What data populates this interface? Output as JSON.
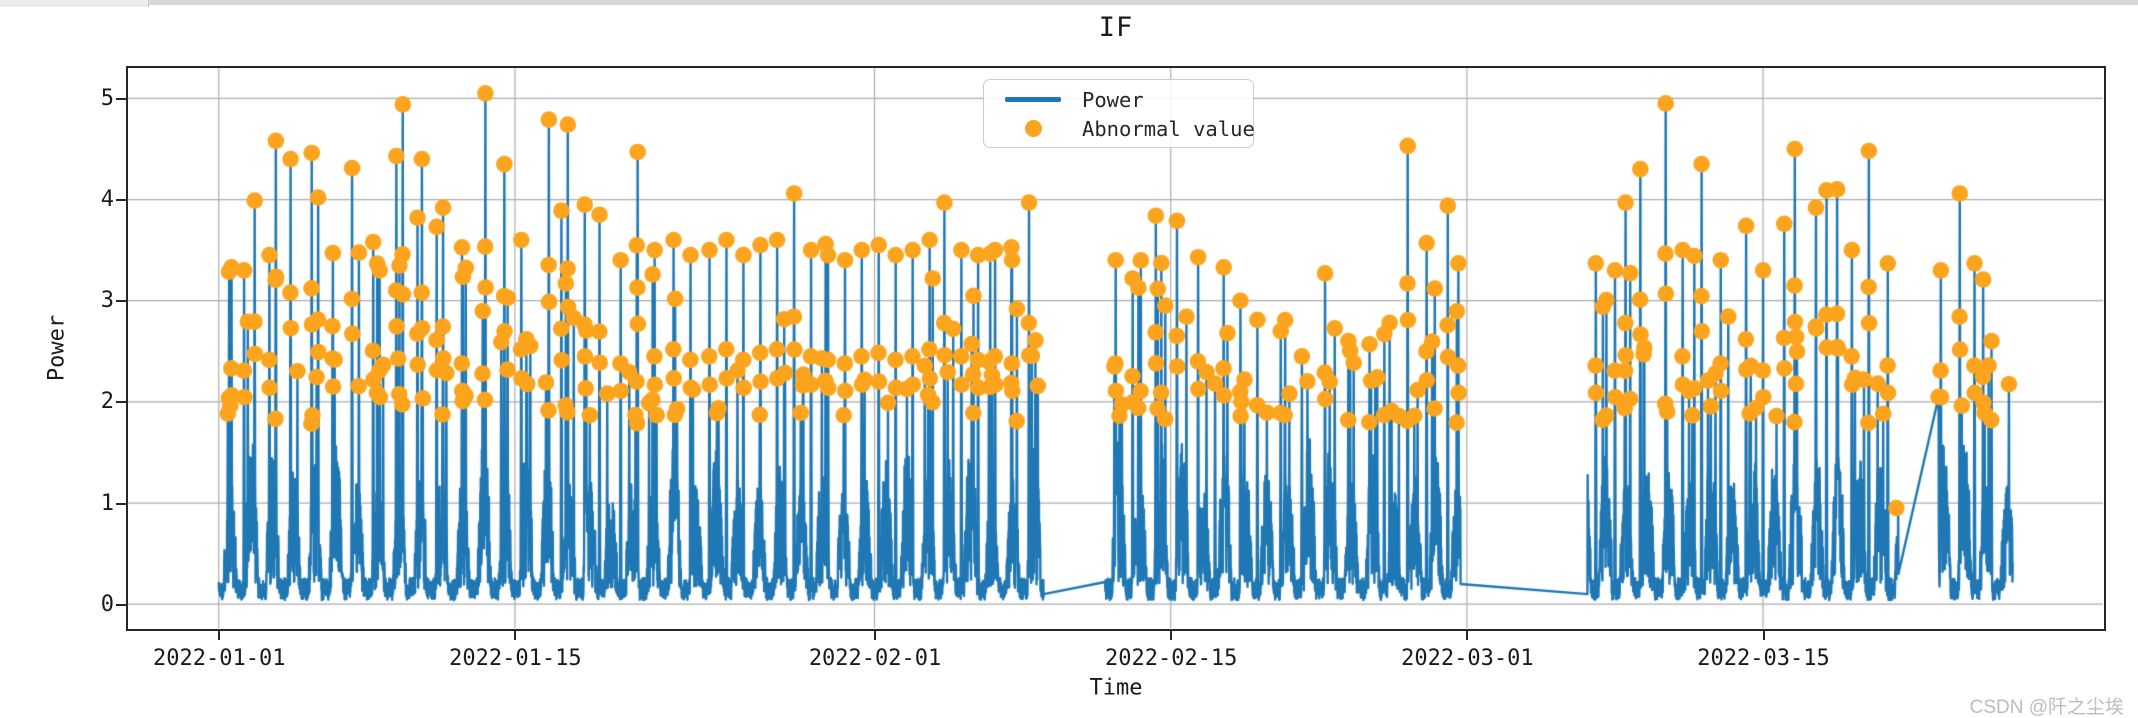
{
  "page": {
    "watermark": "CSDN @阡之尘埃"
  },
  "chart_data": {
    "type": "line",
    "title": "IF",
    "xlabel": "Time",
    "ylabel": "Power",
    "x_ticks": [
      "2022-01-01",
      "2022-01-15",
      "2022-02-01",
      "2022-02-15",
      "2022-03-01",
      "2022-03-15"
    ],
    "x_tick_days": [
      0,
      14,
      31,
      45,
      59,
      73
    ],
    "y_ticks": [
      0,
      1,
      2,
      3,
      4,
      5
    ],
    "xlim_days": [
      -4.29,
      89.07
    ],
    "ylim": [
      -0.235,
      5.3
    ],
    "grid": true,
    "legend_position": "upper center-left inside plot",
    "legend": [
      {
        "label": "Power",
        "type": "line",
        "color": "#1f77b4"
      },
      {
        "label": "Abnormal value",
        "type": "dot",
        "color": "#fca41d"
      }
    ],
    "colors": {
      "line": "#1f77b4",
      "anomaly": "#fca41d",
      "grid": "#adadad",
      "spine": "#262626"
    },
    "day_zero_date": "2022-01-01",
    "max_point": {
      "date": "2022-01-13",
      "value": 5.05
    },
    "baseline_band": {
      "min": 0.05,
      "typical_top": 1.65,
      "description": "dense 15-min power readings oscillating between ~0.05 and ~1.7 all day"
    },
    "data_blocks": [
      {
        "start_day": 0.0,
        "end_day": 39.0,
        "start": "2022-01-01",
        "end": "2022-02-09"
      },
      {
        "start_day": 41.9,
        "end_day": 58.7,
        "start": "2022-02-11",
        "end": "2022-02-28"
      },
      {
        "start_day": 64.7,
        "end_day": 79.4,
        "start": "2022-03-06",
        "end": "2022-03-21"
      },
      {
        "start_day": 81.3,
        "end_day": 84.8,
        "start": "2022-03-23",
        "end": "2022-03-26"
      }
    ],
    "gap_connectors": [
      {
        "from_day": 39.0,
        "from_value": 0.1,
        "to_day": 41.9,
        "to_value": 0.22
      },
      {
        "from_day": 58.7,
        "from_value": 0.2,
        "to_day": 64.7,
        "to_value": 0.1
      },
      {
        "from_day": 79.4,
        "from_value": 0.3,
        "to_day": 81.3,
        "to_value": 2.05
      }
    ],
    "peaks_day_value": [
      [
        0.6,
        3.33
      ],
      [
        1.2,
        3.3
      ],
      [
        1.7,
        3.99
      ],
      [
        2.4,
        3.45
      ],
      [
        2.7,
        4.58
      ],
      [
        3.4,
        4.4
      ],
      [
        4.4,
        4.46
      ],
      [
        4.7,
        4.02
      ],
      [
        5.4,
        3.47
      ],
      [
        6.3,
        4.31
      ],
      [
        7.3,
        3.58
      ],
      [
        7.6,
        3.3
      ],
      [
        8.4,
        4.43
      ],
      [
        8.7,
        4.94
      ],
      [
        9.4,
        3.82
      ],
      [
        9.6,
        4.4
      ],
      [
        10.3,
        3.73
      ],
      [
        10.6,
        3.92
      ],
      [
        11.5,
        3.4
      ],
      [
        12.6,
        5.05
      ],
      [
        13.5,
        4.35
      ],
      [
        14.3,
        3.6
      ],
      [
        15.6,
        4.79
      ],
      [
        16.2,
        3.89
      ],
      [
        16.5,
        4.74
      ],
      [
        17.3,
        3.95
      ],
      [
        18.0,
        3.85
      ],
      [
        19.0,
        3.4
      ],
      [
        19.8,
        4.47
      ],
      [
        20.6,
        3.5
      ],
      [
        21.5,
        3.6
      ],
      [
        22.3,
        3.45
      ],
      [
        23.2,
        3.5
      ],
      [
        24.0,
        3.6
      ],
      [
        24.8,
        3.45
      ],
      [
        25.6,
        3.55
      ],
      [
        26.4,
        3.6
      ],
      [
        27.2,
        4.06
      ],
      [
        28.0,
        3.5
      ],
      [
        28.8,
        3.45
      ],
      [
        29.6,
        3.4
      ],
      [
        30.4,
        3.5
      ],
      [
        31.2,
        3.55
      ],
      [
        32.0,
        3.45
      ],
      [
        32.8,
        3.5
      ],
      [
        33.6,
        3.6
      ],
      [
        34.3,
        3.97
      ],
      [
        35.1,
        3.5
      ],
      [
        35.9,
        3.45
      ],
      [
        36.7,
        3.5
      ],
      [
        37.5,
        3.4
      ],
      [
        38.3,
        3.97
      ],
      [
        42.4,
        3.4
      ],
      [
        43.2,
        3.22
      ],
      [
        44.3,
        3.84
      ],
      [
        45.3,
        3.79
      ],
      [
        46.3,
        3.43
      ],
      [
        47.1,
        2.18
      ],
      [
        47.5,
        3.33
      ],
      [
        48.3,
        3.0
      ],
      [
        49.1,
        2.81
      ],
      [
        50.2,
        2.7
      ],
      [
        51.2,
        2.45
      ],
      [
        52.3,
        3.27
      ],
      [
        53.4,
        2.6
      ],
      [
        54.4,
        2.57
      ],
      [
        55.1,
        2.67
      ],
      [
        56.2,
        4.53
      ],
      [
        57.1,
        3.57
      ],
      [
        58.1,
        3.94
      ],
      [
        58.6,
        3.37
      ],
      [
        65.1,
        3.37
      ],
      [
        66.0,
        3.3
      ],
      [
        66.5,
        3.97
      ],
      [
        67.2,
        4.3
      ],
      [
        68.4,
        4.95
      ],
      [
        69.2,
        3.5
      ],
      [
        70.1,
        4.35
      ],
      [
        71.0,
        3.4
      ],
      [
        72.2,
        3.74
      ],
      [
        73.0,
        3.3
      ],
      [
        74.0,
        3.76
      ],
      [
        74.5,
        4.5
      ],
      [
        75.5,
        3.92
      ],
      [
        76.0,
        4.09
      ],
      [
        76.5,
        4.1
      ],
      [
        77.2,
        3.5
      ],
      [
        78.0,
        4.48
      ],
      [
        78.9,
        3.37
      ],
      [
        81.4,
        3.3
      ],
      [
        82.3,
        4.06
      ],
      [
        83.0,
        3.37
      ],
      [
        83.4,
        3.21
      ],
      [
        83.8,
        2.6
      ]
    ],
    "series_spec": {
      "samples_per_day": 96,
      "seed": 1337,
      "anomaly_threshold": 1.78,
      "random_spike_caps": [
        [
          0,
          39,
          3.62
        ],
        [
          41.9,
          46,
          3.45
        ],
        [
          46,
          48.3,
          3.35
        ],
        [
          48.3,
          55.6,
          2.85
        ],
        [
          55.6,
          58.7,
          3.4
        ],
        [
          64.7,
          79.4,
          3.5
        ],
        [
          81.3,
          84.8,
          3.4
        ]
      ],
      "extra_anomalies_day_value": [
        [
          79.3,
          0.95
        ]
      ]
    }
  }
}
